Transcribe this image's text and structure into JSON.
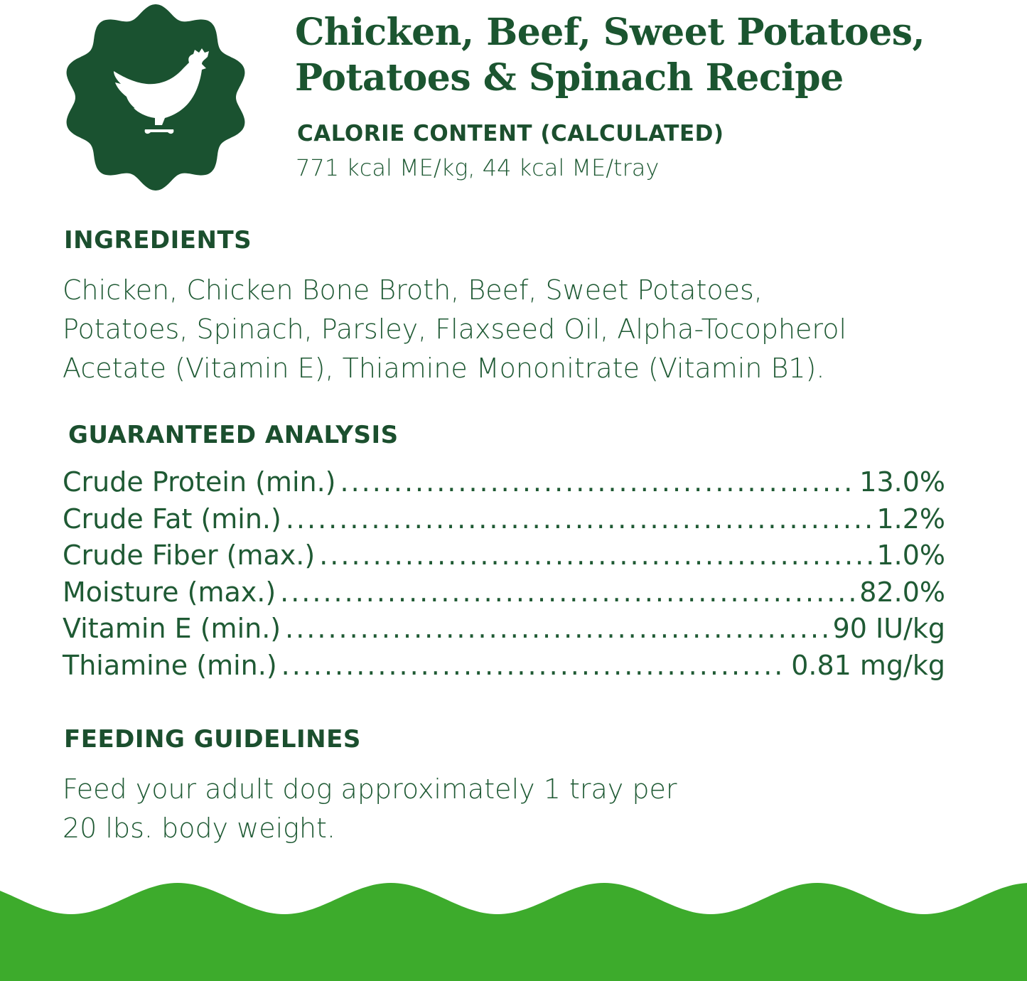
{
  "colors": {
    "badge": "#1a5230",
    "wave": "#3dab2c",
    "text": "#1d5a30"
  },
  "badge": {
    "icon": "chicken-icon"
  },
  "title_lines": [
    "Chicken, Beef, Sweet Potatoes,",
    "Potatoes & Spinach Recipe"
  ],
  "calorie": {
    "heading": "CALORIE CONTENT (CALCULATED)",
    "value": "771 kcal ME/kg, 44 kcal ME/tray"
  },
  "ingredients": {
    "heading": "INGREDIENTS",
    "lines": [
      "Chicken, Chicken Bone Broth, Beef, Sweet Potatoes,",
      "Potatoes, Spinach, Parsley, Flaxseed Oil, Alpha-Tocopherol",
      "Acetate (Vitamin E), Thiamine Mononitrate (Vitamin B1)."
    ]
  },
  "analysis": {
    "heading": "GUARANTEED ANALYSIS",
    "rows": [
      {
        "label": "Crude Protein (min.)",
        "value": "13.0%"
      },
      {
        "label": "Crude Fat (min.)",
        "value": "1.2%"
      },
      {
        "label": "Crude Fiber (max.)",
        "value": "1.0%"
      },
      {
        "label": "Moisture (max.)",
        "value": "82.0%"
      },
      {
        "label": "Vitamin E (min.)",
        "value": "90 IU/kg"
      },
      {
        "label": "Thiamine (min.)",
        "value": "0.81 mg/kg"
      }
    ]
  },
  "feeding": {
    "heading": "FEEDING GUIDELINES",
    "lines": [
      "Feed your adult dog approximately 1 tray per",
      "20 lbs. body weight."
    ]
  }
}
